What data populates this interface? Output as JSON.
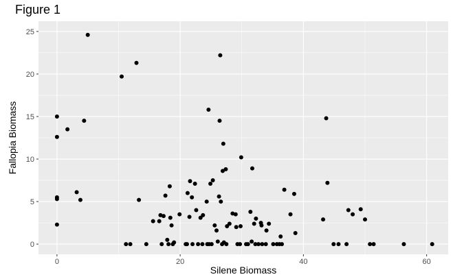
{
  "figure": {
    "title": "Figure 1"
  },
  "chart_data": {
    "type": "scatter",
    "title": "Figure 1",
    "xlabel": "Silene Biomass",
    "ylabel": "Fallopia Biomass",
    "xlim": [
      -3,
      63.5
    ],
    "ylim": [
      -1.2,
      26.2
    ],
    "x_ticks": [
      0,
      20,
      40,
      60
    ],
    "y_ticks": [
      0,
      5,
      10,
      15,
      20,
      25
    ],
    "grid": true,
    "legend": "none",
    "colors": {
      "panel": "#ebebeb",
      "grid": "#ffffff",
      "point": "#000000",
      "tick": "#4d4d4d"
    },
    "points": [
      {
        "x": 0,
        "y": 15.0
      },
      {
        "x": 0,
        "y": 12.6
      },
      {
        "x": 0,
        "y": 5.5
      },
      {
        "x": 0,
        "y": 5.3
      },
      {
        "x": 0,
        "y": 2.3
      },
      {
        "x": 1.7,
        "y": 13.5
      },
      {
        "x": 3.2,
        "y": 6.1
      },
      {
        "x": 3.8,
        "y": 5.2
      },
      {
        "x": 4.4,
        "y": 14.5
      },
      {
        "x": 5.0,
        "y": 24.6
      },
      {
        "x": 10.5,
        "y": 19.7
      },
      {
        "x": 11.2,
        "y": 0
      },
      {
        "x": 11.9,
        "y": 0
      },
      {
        "x": 12.9,
        "y": 21.3
      },
      {
        "x": 13.3,
        "y": 5.2
      },
      {
        "x": 14.5,
        "y": 0
      },
      {
        "x": 15.6,
        "y": 2.7
      },
      {
        "x": 16.6,
        "y": 2.7
      },
      {
        "x": 16.8,
        "y": 3.4
      },
      {
        "x": 17.0,
        "y": 0
      },
      {
        "x": 17.3,
        "y": 3.3
      },
      {
        "x": 17.6,
        "y": 5.7
      },
      {
        "x": 17.9,
        "y": 0.5
      },
      {
        "x": 18.1,
        "y": 0
      },
      {
        "x": 18.3,
        "y": 6.8
      },
      {
        "x": 18.4,
        "y": 3.1
      },
      {
        "x": 18.6,
        "y": 2.2
      },
      {
        "x": 18.8,
        "y": 0
      },
      {
        "x": 19.0,
        "y": 0.2
      },
      {
        "x": 19.9,
        "y": 3.5
      },
      {
        "x": 20.9,
        "y": 0
      },
      {
        "x": 21.1,
        "y": 0
      },
      {
        "x": 21.2,
        "y": 6.0
      },
      {
        "x": 21.5,
        "y": 3.2
      },
      {
        "x": 21.6,
        "y": 7.4
      },
      {
        "x": 21.9,
        "y": 5.5
      },
      {
        "x": 22.0,
        "y": 0
      },
      {
        "x": 22.4,
        "y": 7.1
      },
      {
        "x": 22.6,
        "y": 4.0
      },
      {
        "x": 22.9,
        "y": 0
      },
      {
        "x": 23.3,
        "y": 3.1
      },
      {
        "x": 23.6,
        "y": 0
      },
      {
        "x": 23.7,
        "y": 3.4
      },
      {
        "x": 24.3,
        "y": 5.0
      },
      {
        "x": 24.4,
        "y": 0
      },
      {
        "x": 24.6,
        "y": 15.8
      },
      {
        "x": 24.7,
        "y": 0
      },
      {
        "x": 24.9,
        "y": 7.1
      },
      {
        "x": 25.1,
        "y": 0
      },
      {
        "x": 25.3,
        "y": 7.5
      },
      {
        "x": 25.6,
        "y": 2.2
      },
      {
        "x": 25.9,
        "y": 1.6
      },
      {
        "x": 26.1,
        "y": 0.3
      },
      {
        "x": 26.3,
        "y": 5.6
      },
      {
        "x": 26.4,
        "y": 14.5
      },
      {
        "x": 26.5,
        "y": 22.2
      },
      {
        "x": 26.6,
        "y": 5.0
      },
      {
        "x": 26.8,
        "y": 0
      },
      {
        "x": 26.9,
        "y": 8.6
      },
      {
        "x": 27.0,
        "y": 11.8
      },
      {
        "x": 27.1,
        "y": 0.2
      },
      {
        "x": 27.4,
        "y": 8.8
      },
      {
        "x": 27.5,
        "y": 0
      },
      {
        "x": 27.6,
        "y": 2.1
      },
      {
        "x": 28.0,
        "y": 2.4
      },
      {
        "x": 28.5,
        "y": 3.6
      },
      {
        "x": 29.0,
        "y": 3.5
      },
      {
        "x": 29.1,
        "y": 2.0
      },
      {
        "x": 29.3,
        "y": 0
      },
      {
        "x": 29.7,
        "y": 0
      },
      {
        "x": 29.8,
        "y": 2.1
      },
      {
        "x": 29.9,
        "y": 10.2
      },
      {
        "x": 30.7,
        "y": 0
      },
      {
        "x": 31.0,
        "y": 0
      },
      {
        "x": 31.4,
        "y": 3.8
      },
      {
        "x": 31.6,
        "y": 0.3
      },
      {
        "x": 31.7,
        "y": 8.9
      },
      {
        "x": 32.0,
        "y": 2.4
      },
      {
        "x": 32.2,
        "y": 0
      },
      {
        "x": 32.3,
        "y": 3.0
      },
      {
        "x": 32.7,
        "y": 0
      },
      {
        "x": 33.1,
        "y": 2.5
      },
      {
        "x": 33.2,
        "y": 2.2
      },
      {
        "x": 33.3,
        "y": 0
      },
      {
        "x": 33.9,
        "y": 0
      },
      {
        "x": 34.0,
        "y": 1.6
      },
      {
        "x": 34.4,
        "y": 2.4
      },
      {
        "x": 35.1,
        "y": 0
      },
      {
        "x": 35.7,
        "y": 0
      },
      {
        "x": 36.1,
        "y": 0
      },
      {
        "x": 36.3,
        "y": 0.9
      },
      {
        "x": 36.5,
        "y": 0
      },
      {
        "x": 36.9,
        "y": 6.4
      },
      {
        "x": 37.9,
        "y": 3.5
      },
      {
        "x": 38.5,
        "y": 5.9
      },
      {
        "x": 38.7,
        "y": 1.3
      },
      {
        "x": 43.2,
        "y": 2.9
      },
      {
        "x": 43.7,
        "y": 14.8
      },
      {
        "x": 43.9,
        "y": 7.2
      },
      {
        "x": 44.9,
        "y": 0
      },
      {
        "x": 45.7,
        "y": 0
      },
      {
        "x": 47.0,
        "y": 0
      },
      {
        "x": 47.3,
        "y": 4.0
      },
      {
        "x": 48.0,
        "y": 3.5
      },
      {
        "x": 49.3,
        "y": 4.1
      },
      {
        "x": 50.0,
        "y": 2.9
      },
      {
        "x": 50.8,
        "y": 0
      },
      {
        "x": 51.4,
        "y": 0
      },
      {
        "x": 56.3,
        "y": 0
      },
      {
        "x": 60.9,
        "y": 0
      }
    ]
  }
}
